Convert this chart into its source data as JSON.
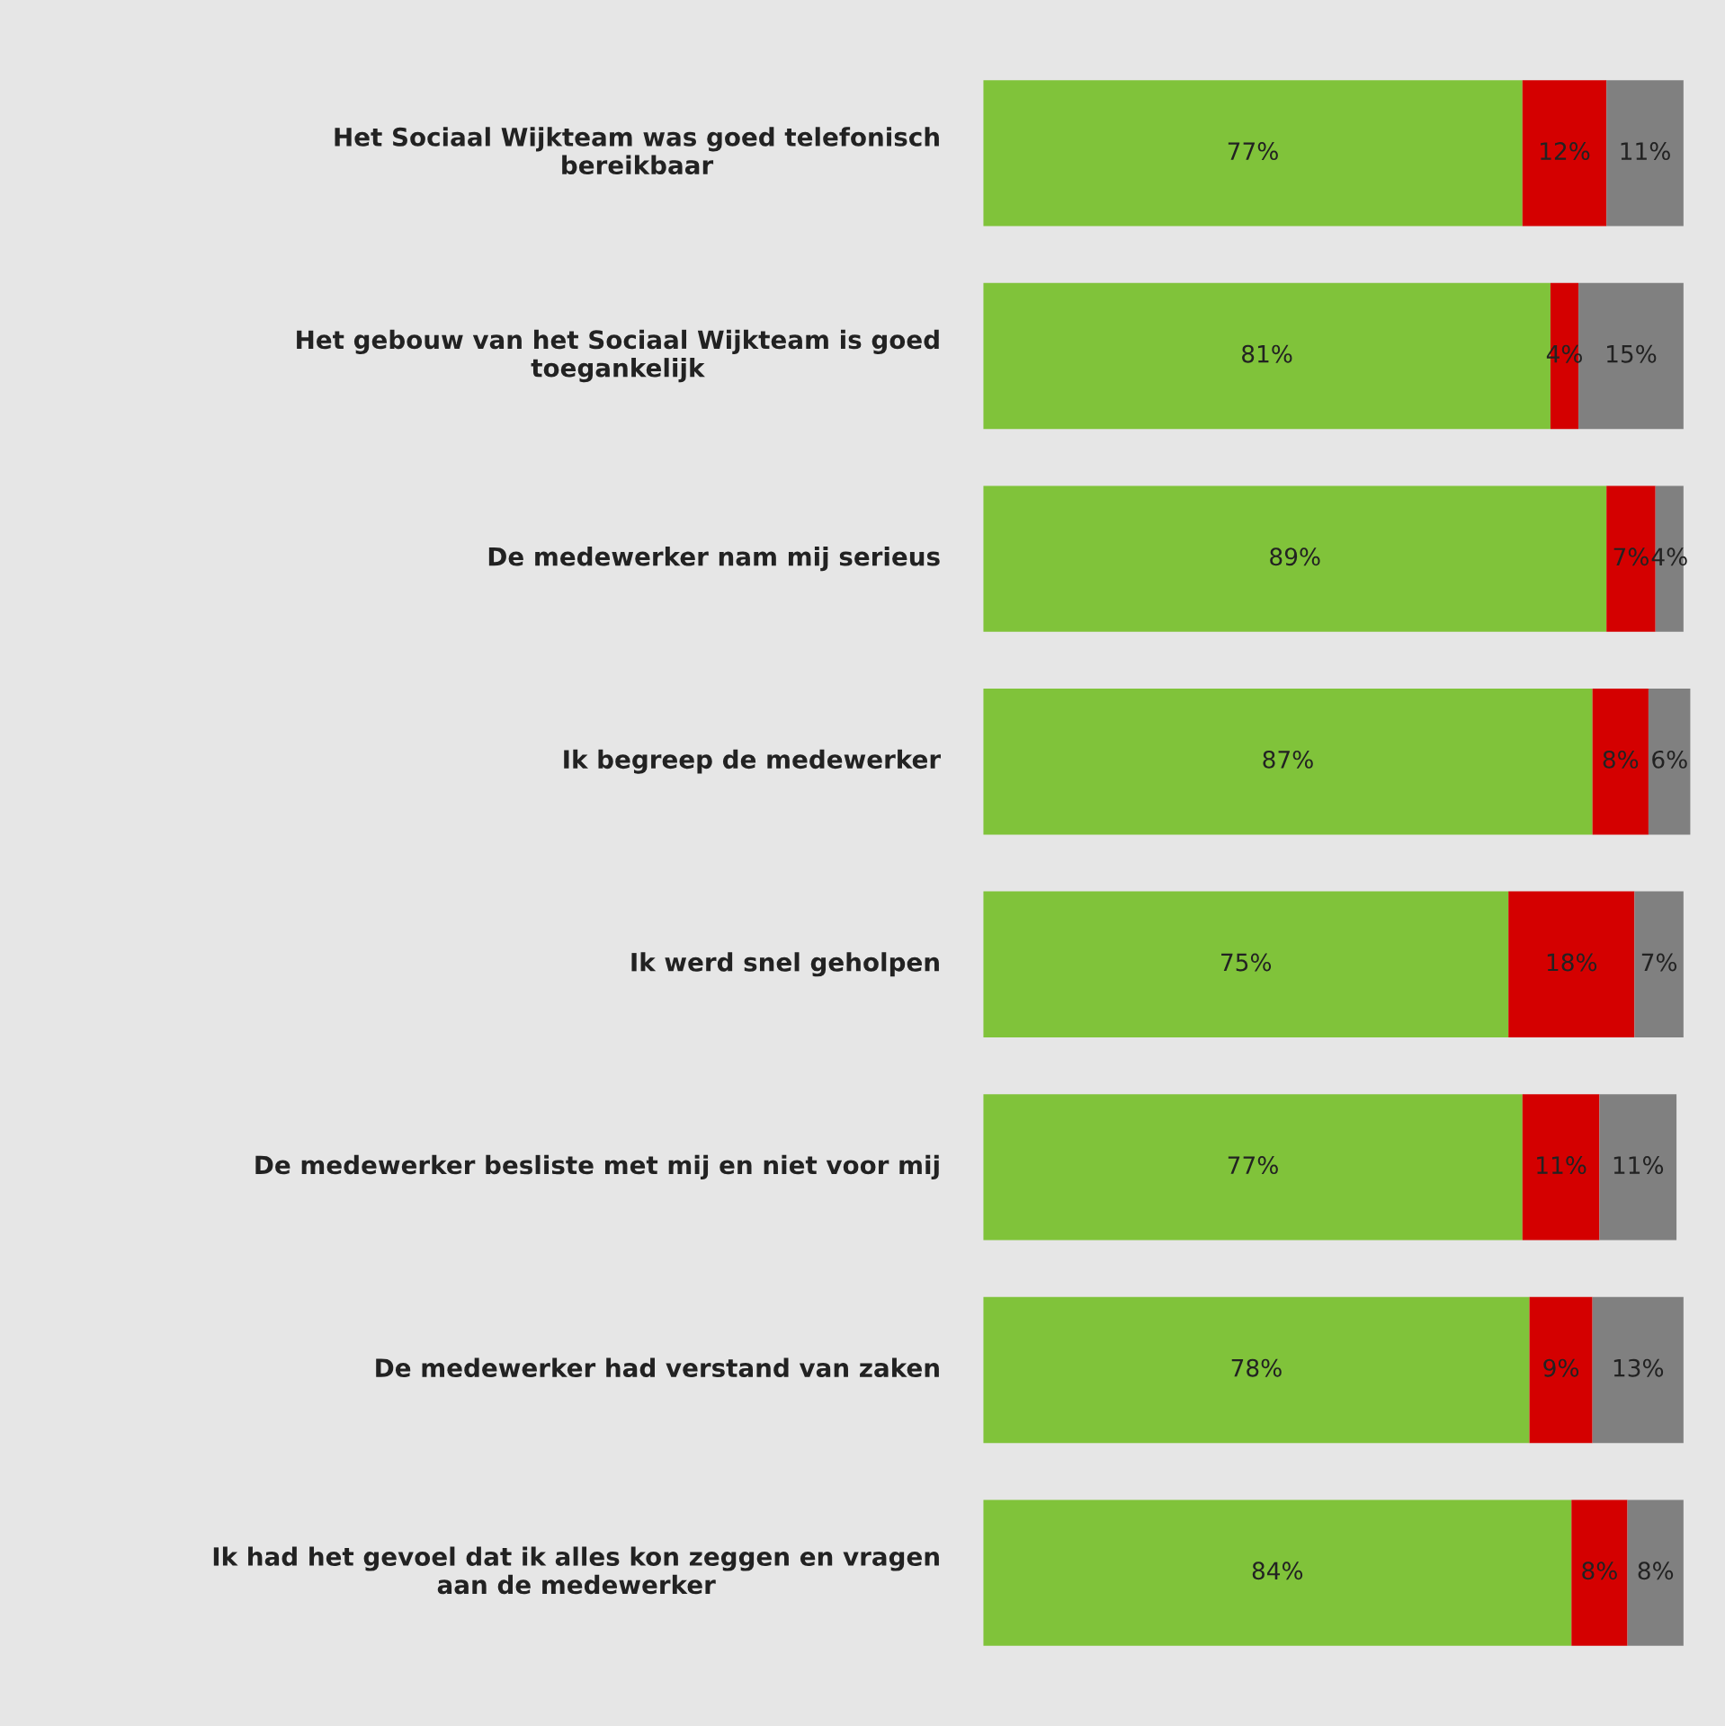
{
  "chart_data": {
    "type": "bar",
    "orientation": "horizontal",
    "stacked": true,
    "tick_labels": "y",
    "grid": false,
    "legend": false,
    "categories": [
      "Het Sociaal Wijkteam was goed telefonisch bereikbaar",
      "Het gebouw van het Sociaal Wijkteam is goed toegankelijk",
      "De medewerker nam mij serieus",
      "Ik begreep de medewerker",
      "Ik werd snel geholpen",
      "De medewerker besliste met mij en niet voor mij",
      "De medewerker had verstand van zaken",
      "Ik had het gevoel dat ik alles kon zeggen en vragen aan de medewerker"
    ],
    "series": [
      {
        "color": "#80c33a",
        "values": [
          77,
          81,
          89,
          87,
          75,
          77,
          78,
          84
        ],
        "value_labels": [
          "77%",
          "81%",
          "89%",
          "87%",
          "75%",
          "77%",
          "78%",
          "84%"
        ]
      },
      {
        "color": "#d40000",
        "values": [
          12,
          4,
          7,
          8,
          18,
          11,
          9,
          8
        ],
        "value_labels": [
          "12%",
          "4%",
          "7%",
          "8%",
          "18%",
          "11%",
          "9%",
          "8%"
        ]
      },
      {
        "color": "#808080",
        "values": [
          11,
          15,
          4,
          6,
          7,
          11,
          13,
          8
        ],
        "value_labels": [
          "11%",
          "15%",
          "4%",
          "6%",
          "7%",
          "11%",
          "13%",
          "8%"
        ]
      }
    ]
  }
}
